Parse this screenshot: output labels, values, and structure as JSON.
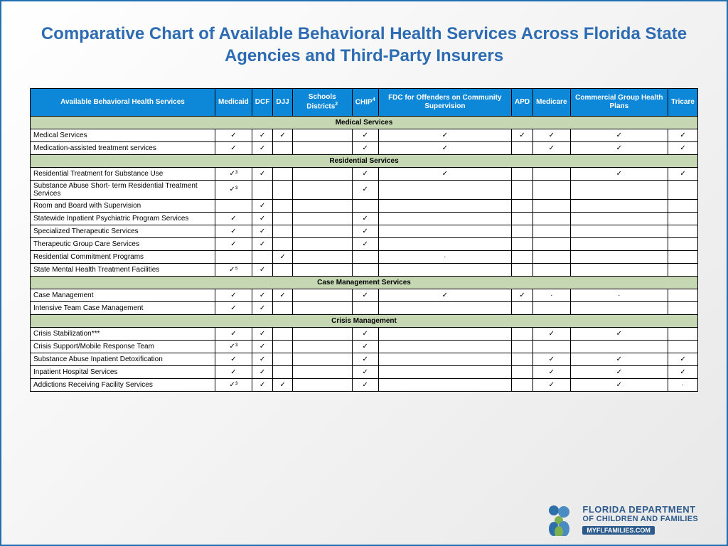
{
  "title": "Comparative Chart of Available Behavioral Health Services Across Florida State Agencies and Third-Party Insurers",
  "check_glyph": "✓",
  "colors": {
    "header_bg": "#0d87d8",
    "section_bg": "#c5d8b3",
    "title_color": "#2d6cb3",
    "border": "#1f6fb2",
    "logo_text": "#2d5a8c"
  },
  "columns": [
    {
      "label": "Available Behavioral Health Services",
      "sup": ""
    },
    {
      "label": "Medicaid",
      "sup": ""
    },
    {
      "label": "DCF",
      "sup": ""
    },
    {
      "label": "DJJ",
      "sup": ""
    },
    {
      "label": "Schools Districts",
      "sup": "2"
    },
    {
      "label": "CHIP",
      "sup": "4"
    },
    {
      "label": "FDC for Offenders on Community Supervision",
      "sup": ""
    },
    {
      "label": "APD",
      "sup": ""
    },
    {
      "label": "Medicare",
      "sup": ""
    },
    {
      "label": "Commercial Group Health Plans",
      "sup": ""
    },
    {
      "label": "Tricare",
      "sup": ""
    }
  ],
  "sections": [
    {
      "name": "Medical Services",
      "rows": [
        {
          "label": "Medical Services",
          "cells": [
            "✓",
            "✓",
            "✓",
            "",
            "✓",
            "✓",
            "✓",
            "✓",
            "✓",
            "✓"
          ]
        },
        {
          "label": "Medication-assisted treatment services",
          "cells": [
            "✓",
            "✓",
            "",
            "",
            "✓",
            "✓",
            "",
            "✓",
            "✓",
            "✓"
          ]
        }
      ]
    },
    {
      "name": "Residential Services",
      "rows": [
        {
          "label": "Residential Treatment for Substance Use",
          "cells": [
            "✓³",
            "✓",
            "",
            "",
            "✓",
            "✓",
            "",
            "",
            "✓",
            "✓"
          ]
        },
        {
          "label": "Substance Abuse Short- term Residential Treatment Services",
          "cells": [
            "✓³",
            "",
            "",
            "",
            "✓",
            "",
            "",
            "",
            "",
            ""
          ]
        },
        {
          "label": "Room and Board with Supervision",
          "cells": [
            "",
            "✓",
            "",
            "",
            "",
            "",
            "",
            "",
            "",
            ""
          ]
        },
        {
          "label": "Statewide Inpatient Psychiatric Program Services",
          "cells": [
            "✓",
            "✓",
            "",
            "",
            "✓",
            "",
            "",
            "",
            "",
            ""
          ]
        },
        {
          "label": "Specialized Therapeutic Services",
          "cells": [
            "✓",
            "✓",
            "",
            "",
            "✓",
            "",
            "",
            "",
            "",
            ""
          ]
        },
        {
          "label": "Therapeutic Group Care Services",
          "cells": [
            "✓",
            "✓",
            "",
            "",
            "✓",
            "",
            "",
            "",
            "",
            ""
          ]
        },
        {
          "label": "Residential Commitment Programs",
          "cells": [
            "",
            "",
            "✓",
            "",
            "",
            "·",
            "",
            "",
            "",
            ""
          ]
        },
        {
          "label": "State Mental Health Treatment Facilities",
          "cells": [
            "✓⁵",
            "✓",
            "",
            "",
            "",
            "",
            "",
            "",
            "",
            ""
          ]
        }
      ]
    },
    {
      "name": "Case Management Services",
      "rows": [
        {
          "label": "Case Management",
          "cells": [
            "✓",
            "✓",
            "✓",
            "",
            "✓",
            "✓",
            "✓",
            "·",
            "·",
            ""
          ]
        },
        {
          "label": "Intensive Team Case Management",
          "cells": [
            "✓",
            "✓",
            "",
            "",
            "",
            "",
            "",
            "",
            "",
            ""
          ]
        }
      ]
    },
    {
      "name": "Crisis Management",
      "rows": [
        {
          "label": "Crisis Stabilization***",
          "cells": [
            "✓",
            "✓",
            "",
            "",
            "✓",
            "",
            "",
            "✓",
            "✓",
            ""
          ]
        },
        {
          "label": "Crisis Support/Mobile Response Team",
          "cells": [
            "✓³",
            "✓",
            "",
            "",
            "✓",
            "",
            "",
            "",
            "",
            ""
          ]
        },
        {
          "label": "Substance Abuse Inpatient Detoxification",
          "cells": [
            "✓",
            "✓",
            "",
            "",
            "✓",
            "",
            "",
            "✓",
            "✓",
            "✓"
          ]
        },
        {
          "label": "Inpatient Hospital Services",
          "cells": [
            "✓",
            "✓",
            "",
            "",
            "✓",
            "",
            "",
            "✓",
            "✓",
            "✓"
          ]
        },
        {
          "label": "Addictions Receiving Facility Services",
          "cells": [
            "✓³",
            "✓",
            "✓",
            "",
            "✓",
            "",
            "",
            "✓",
            "✓",
            "·"
          ]
        }
      ]
    }
  ],
  "logo": {
    "line1": "FLORIDA DEPARTMENT",
    "line2": "OF CHILDREN AND FAMILIES",
    "url": "MYFLFAMILIES.COM"
  }
}
